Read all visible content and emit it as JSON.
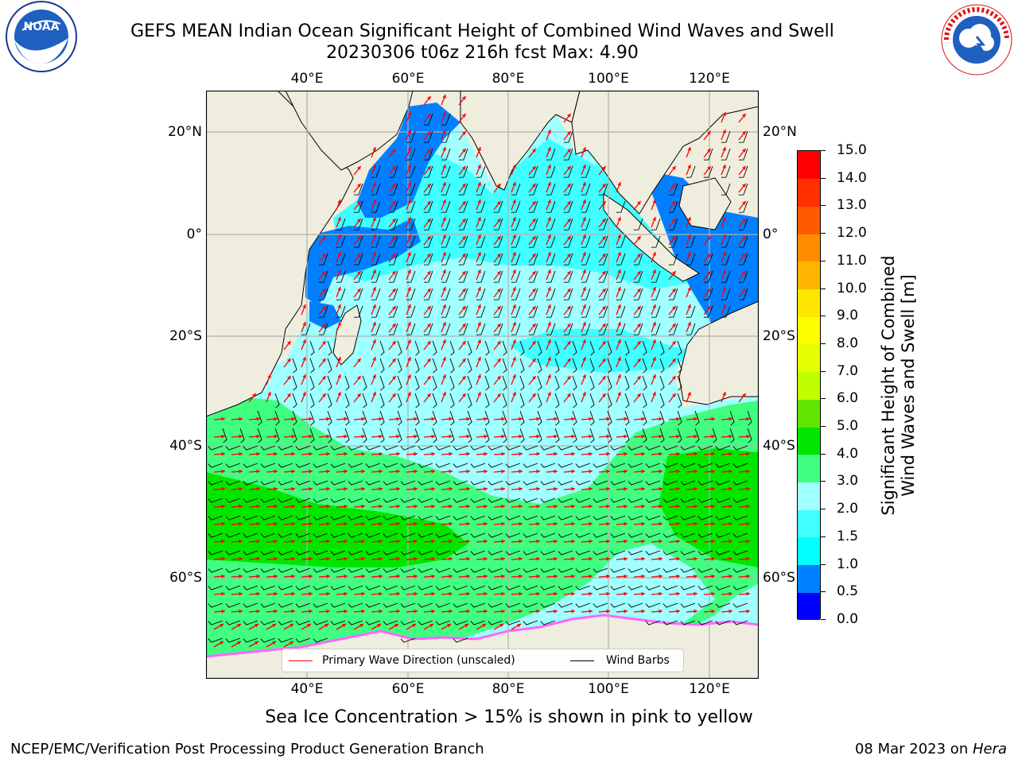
{
  "header": {
    "title_line1": "GEFS MEAN Indian Ocean Significant Height of Combined Wind Waves and Swell",
    "title_line2": "20230306 t06z 216h fcst   Max: 4.90"
  },
  "logos": {
    "left": "noaa-logo",
    "left_text": "NOAA",
    "right": "nws-logo"
  },
  "map": {
    "lon_labels": [
      "40°E",
      "60°E",
      "80°E",
      "100°E",
      "120°E"
    ],
    "lat_labels": [
      "20°N",
      "0°",
      "20°S",
      "40°S",
      "60°S"
    ],
    "colors": {
      "land": "#efedde",
      "grid": "#b0b0b0",
      "coast": "#000000",
      "wave_arrow": "#ff0000",
      "wind_barb": "#000000"
    }
  },
  "legend": {
    "wave_label": "Primary Wave Direction (unscaled)",
    "wind_label": "Wind Barbs",
    "wave_color": "#ff0000",
    "wind_color": "#000000"
  },
  "colorbar": {
    "label_line1": "Significant Height of Combined",
    "label_line2": "Wind Waves and Swell [m]",
    "ticks": [
      "0.0",
      "0.5",
      "1.0",
      "1.5",
      "2.0",
      "3.0",
      "4.0",
      "5.0",
      "6.0",
      "7.0",
      "8.0",
      "9.0",
      "10.0",
      "11.0",
      "12.0",
      "13.0",
      "14.0",
      "15.0"
    ],
    "colors": [
      "#0000ff",
      "#0080ff",
      "#00ffff",
      "#40ffff",
      "#a0ffff",
      "#40ff80",
      "#00e600",
      "#60e600",
      "#c0ff00",
      "#e6ff00",
      "#ffff00",
      "#ffe600",
      "#ffb400",
      "#ff8c00",
      "#ff5a00",
      "#ff3000",
      "#ff0000"
    ]
  },
  "caption": "Sea Ice Concentration > 15% is shown in pink to yellow",
  "footer": {
    "left": "NCEP/EMC/Verification Post Processing Product Generation Branch",
    "date": "08 Mar 2023 on ",
    "machine": "Hera"
  }
}
